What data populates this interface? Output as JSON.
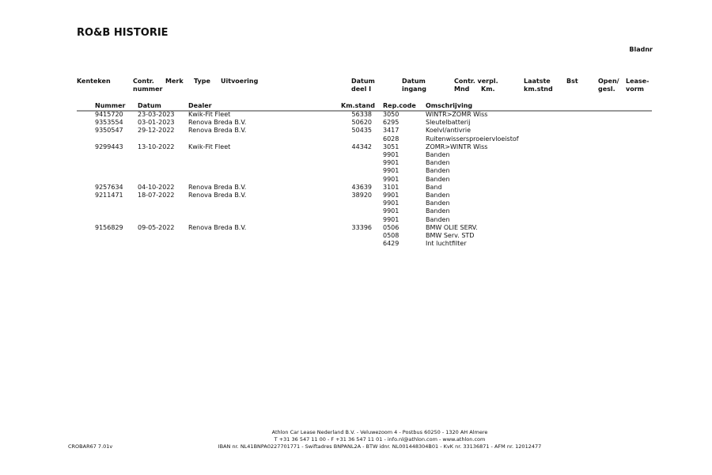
{
  "title": "RO&B HISTORIE",
  "bladnr_label": "Bladnr",
  "header": {
    "kenteken": "Kenteken",
    "contr1": "Contr.",
    "contr2": "nummer",
    "merk": "Merk",
    "type": "Type",
    "uitvoering": "Uitvoering",
    "datum_deel1": "Datum",
    "datum_deel2": "deel I",
    "datum_ingang1": "Datum",
    "datum_ingang2": "ingang",
    "contr_verpl1": "Contr. verpl.",
    "mnd": "Mnd",
    "km": "Km.",
    "laatste1": "Laatste",
    "laatste2": "km.stnd",
    "bst": "Bst",
    "open1": "Open/",
    "open2": "gesl.",
    "lease1": "Lease-",
    "lease2": "vorm"
  },
  "columns": {
    "nummer": "Nummer",
    "datum": "Datum",
    "dealer": "Dealer",
    "kmstand": "Km.stand",
    "repcode": "Rep.code",
    "omschrijving": "Omschrijving"
  },
  "rows": [
    {
      "nummer": "9415720",
      "datum": "23-03-2023",
      "dealer": "Kwik-Fit Fleet",
      "km": "56338",
      "rep": "3050",
      "desc": "WINTR>ZOMR Wiss"
    },
    {
      "nummer": "9353554",
      "datum": "03-01-2023",
      "dealer": "Renova Breda B.V.",
      "km": "50620",
      "rep": "6295",
      "desc": "Sleutelbatterij"
    },
    {
      "nummer": "9350547",
      "datum": "29-12-2022",
      "dealer": "Renova Breda B.V.",
      "km": "50435",
      "rep": "3417",
      "desc": "Koelvl/antivrie"
    },
    {
      "nummer": "",
      "datum": "",
      "dealer": "",
      "km": "",
      "rep": "6028",
      "desc": "Ruitenwissersproeiervloeistof"
    },
    {
      "nummer": "9299443",
      "datum": "13-10-2022",
      "dealer": "Kwik-Fit Fleet",
      "km": "44342",
      "rep": "3051",
      "desc": "ZOMR>WINTR Wiss"
    },
    {
      "nummer": "",
      "datum": "",
      "dealer": "",
      "km": "",
      "rep": "9901",
      "desc": "Banden"
    },
    {
      "nummer": "",
      "datum": "",
      "dealer": "",
      "km": "",
      "rep": "9901",
      "desc": "Banden"
    },
    {
      "nummer": "",
      "datum": "",
      "dealer": "",
      "km": "",
      "rep": "9901",
      "desc": "Banden"
    },
    {
      "nummer": "",
      "datum": "",
      "dealer": "",
      "km": "",
      "rep": "9901",
      "desc": "Banden"
    },
    {
      "nummer": "9257634",
      "datum": "04-10-2022",
      "dealer": "Renova Breda B.V.",
      "km": "43639",
      "rep": "3101",
      "desc": "Band"
    },
    {
      "nummer": "9211471",
      "datum": "18-07-2022",
      "dealer": "Renova Breda B.V.",
      "km": "38920",
      "rep": "9901",
      "desc": "Banden"
    },
    {
      "nummer": "",
      "datum": "",
      "dealer": "",
      "km": "",
      "rep": "9901",
      "desc": "Banden"
    },
    {
      "nummer": "",
      "datum": "",
      "dealer": "",
      "km": "",
      "rep": "9901",
      "desc": "Banden"
    },
    {
      "nummer": "",
      "datum": "",
      "dealer": "",
      "km": "",
      "rep": "9901",
      "desc": "Banden"
    },
    {
      "nummer": "9156829",
      "datum": "09-05-2022",
      "dealer": "Renova Breda B.V.",
      "km": "33396",
      "rep": "0506",
      "desc": "BMW OLIE SERV."
    },
    {
      "nummer": "",
      "datum": "",
      "dealer": "",
      "km": "",
      "rep": "0508",
      "desc": "BMW Serv. STD"
    },
    {
      "nummer": "",
      "datum": "",
      "dealer": "",
      "km": "",
      "rep": "6429",
      "desc": "Int luchtfilter"
    }
  ],
  "footer": {
    "form_code": "CROBAR67 7.01v",
    "line1": "Athlon Car Lease Nederland B.V. - Veluwezoom 4 - Postbus 60250 - 1320 AH  Almere",
    "line2": "T +31 36 547 11 00 - F +31 36 547 11 01 - info.nl@athlon.com - www.athlon.com",
    "line3": "IBAN nr. NL41BNPA0227701771 - Swiftadres BNPANL2A - BTW idnr. NL001448304B01 - KvK nr. 33136871 - AFM nr. 12012477"
  }
}
